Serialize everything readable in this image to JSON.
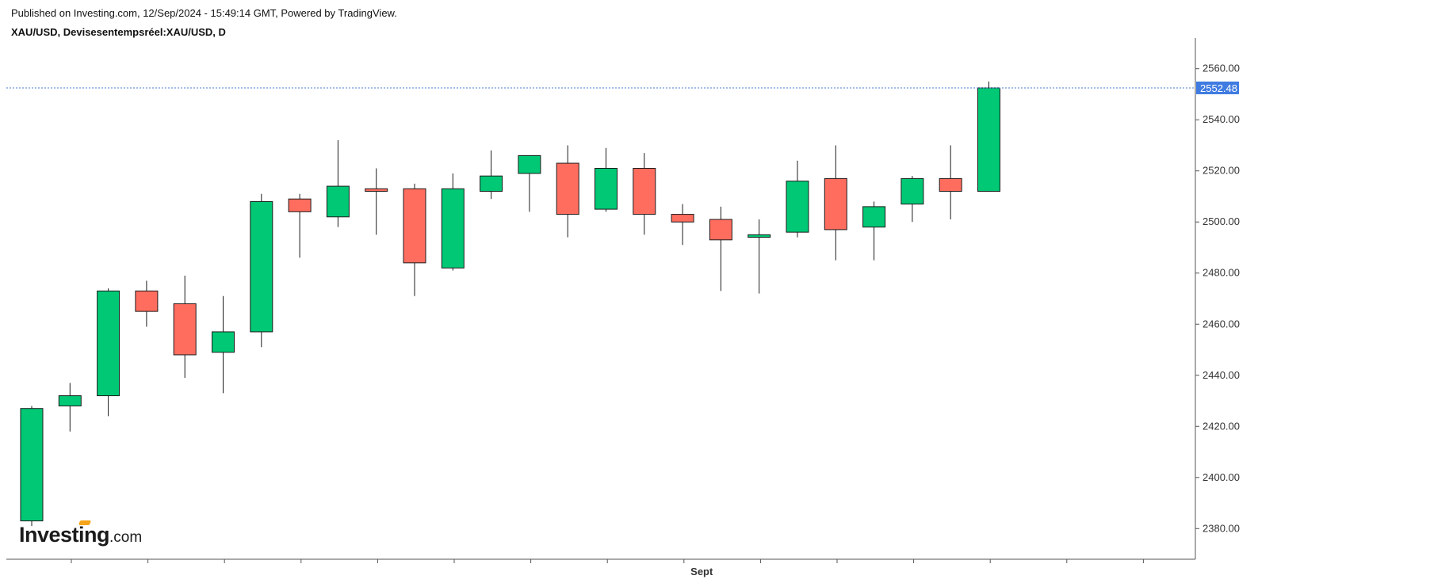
{
  "header": {
    "published": "Published on Investing.com, 12/Sep/2024 - 15:49:14 GMT, Powered by TradingView.",
    "symbol_line": "XAU/USD, Devisesentempsréel:XAU/USD, D"
  },
  "logo": {
    "main": "Investing",
    "suffix": ".com"
  },
  "colors": {
    "up": "#00c875",
    "down": "#ff6d5f",
    "outline": "#1c1c1c",
    "last_price_line": "#4a7bd6",
    "last_price_badge": "#3f7be0"
  },
  "chart_data": {
    "type": "candlestick",
    "title": "",
    "xlabel": "",
    "ylabel": "",
    "ylim": [
      2368,
      2572
    ],
    "y_ticks": [
      "2380.00",
      "2400.00",
      "2420.00",
      "2440.00",
      "2460.00",
      "2480.00",
      "2500.00",
      "2520.00",
      "2540.00",
      "2560.00"
    ],
    "x_tick_labels": [
      {
        "after_candle": 17,
        "label": "Sept"
      }
    ],
    "last_price": "2552.48",
    "grid": false,
    "candles": [
      {
        "o": 2383,
        "h": 2428,
        "l": 2381,
        "c": 2427
      },
      {
        "o": 2428,
        "h": 2437,
        "l": 2418,
        "c": 2432
      },
      {
        "o": 2432,
        "h": 2474,
        "l": 2424,
        "c": 2473
      },
      {
        "o": 2473,
        "h": 2477,
        "l": 2459,
        "c": 2465
      },
      {
        "o": 2468,
        "h": 2479,
        "l": 2439,
        "c": 2448
      },
      {
        "o": 2449,
        "h": 2471,
        "l": 2433,
        "c": 2457
      },
      {
        "o": 2457,
        "h": 2511,
        "l": 2451,
        "c": 2508
      },
      {
        "o": 2509,
        "h": 2511,
        "l": 2486,
        "c": 2504
      },
      {
        "o": 2502,
        "h": 2532,
        "l": 2498,
        "c": 2514
      },
      {
        "o": 2513,
        "h": 2521,
        "l": 2495,
        "c": 2512
      },
      {
        "o": 2513,
        "h": 2515,
        "l": 2471,
        "c": 2484
      },
      {
        "o": 2482,
        "h": 2519,
        "l": 2481,
        "c": 2513
      },
      {
        "o": 2512,
        "h": 2528,
        "l": 2509,
        "c": 2518
      },
      {
        "o": 2519,
        "h": 2526,
        "l": 2504,
        "c": 2526
      },
      {
        "o": 2523,
        "h": 2530,
        "l": 2494,
        "c": 2503
      },
      {
        "o": 2505,
        "h": 2529,
        "l": 2504,
        "c": 2521
      },
      {
        "o": 2521,
        "h": 2527,
        "l": 2495,
        "c": 2503
      },
      {
        "o": 2503,
        "h": 2507,
        "l": 2491,
        "c": 2500
      },
      {
        "o": 2501,
        "h": 2506,
        "l": 2473,
        "c": 2493
      },
      {
        "o": 2494,
        "h": 2501,
        "l": 2472,
        "c": 2495
      },
      {
        "o": 2496,
        "h": 2524,
        "l": 2494,
        "c": 2516
      },
      {
        "o": 2517,
        "h": 2530,
        "l": 2485,
        "c": 2497
      },
      {
        "o": 2498,
        "h": 2508,
        "l": 2485,
        "c": 2506
      },
      {
        "o": 2507,
        "h": 2518,
        "l": 2500,
        "c": 2517
      },
      {
        "o": 2517,
        "h": 2530,
        "l": 2501,
        "c": 2512
      },
      {
        "o": 2512,
        "h": 2555,
        "l": 2512,
        "c": 2552.48
      }
    ]
  }
}
